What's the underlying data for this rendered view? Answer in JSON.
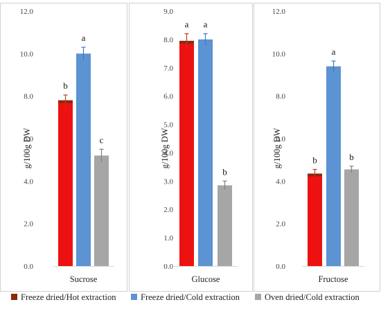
{
  "colors": {
    "background": "#ffffff",
    "axis_frame": "#d0d0d0",
    "grid": "#e0e0e0"
  },
  "legend": {
    "placement": "bottom",
    "items": [
      {
        "label": "Freeze dried/Hot extraction",
        "color": "#ee1111",
        "swatch_color": "#8b2a0a"
      },
      {
        "label": "Freeze dried/Cold extraction",
        "color": "#5b93d3",
        "swatch_color": "#5b93d3"
      },
      {
        "label": "Oven dried/Cold extraction",
        "color": "#a6a6a6",
        "swatch_color": "#a6a6a6"
      }
    ]
  },
  "chart_data": [
    {
      "type": "bar",
      "category": "Sucrose",
      "ylabel": "g/100g DW",
      "ylim": [
        0,
        12
      ],
      "yticks": [
        "0.0",
        "2.0",
        "4.0",
        "6.0",
        "8.0",
        "10.0",
        "12.0"
      ],
      "series": [
        {
          "name": "Freeze dried/Hot extraction",
          "value": 7.8,
          "error": 0.25,
          "letter": "b"
        },
        {
          "name": "Freeze dried/Cold extraction",
          "value": 10.0,
          "error": 0.3,
          "letter": "a"
        },
        {
          "name": "Oven dried/Cold extraction",
          "value": 5.2,
          "error": 0.3,
          "letter": "c"
        }
      ]
    },
    {
      "type": "bar",
      "category": "Glucose",
      "ylabel": "g/100g DW",
      "ylim": [
        0,
        9
      ],
      "yticks": [
        "0.0",
        "1.0",
        "2.0",
        "3.0",
        "4.0",
        "5.0",
        "6.0",
        "7.0",
        "8.0",
        "9.0"
      ],
      "series": [
        {
          "name": "Freeze dried/Hot extraction",
          "value": 7.95,
          "error": 0.25,
          "letter": "a"
        },
        {
          "name": "Freeze dried/Cold extraction",
          "value": 8.0,
          "error": 0.2,
          "letter": "a"
        },
        {
          "name": "Oven dried/Cold extraction",
          "value": 2.85,
          "error": 0.15,
          "letter": "b"
        }
      ]
    },
    {
      "type": "bar",
      "category": "Fructose",
      "ylabel": "g/100g DW",
      "ylim": [
        0,
        12
      ],
      "yticks": [
        "0.0",
        "2.0",
        "4.0",
        "6.0",
        "8.0",
        "10.0",
        "12.0"
      ],
      "series": [
        {
          "name": "Freeze dried/Hot extraction",
          "value": 4.35,
          "error": 0.2,
          "letter": "b"
        },
        {
          "name": "Freeze dried/Cold extraction",
          "value": 9.4,
          "error": 0.25,
          "letter": "a"
        },
        {
          "name": "Oven dried/Cold extraction",
          "value": 4.55,
          "error": 0.15,
          "letter": "b"
        }
      ]
    }
  ]
}
